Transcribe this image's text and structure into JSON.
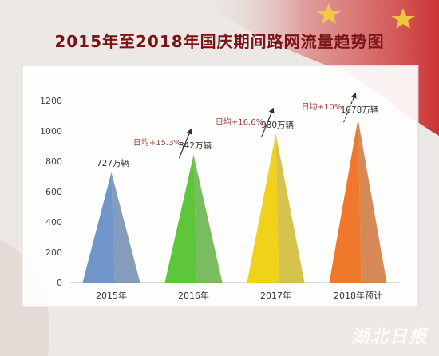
{
  "title": "2015年至2018年国庆期间路网流量趋势图",
  "watermark": "湖北日报",
  "colors": {
    "bars": [
      "#6f95c9",
      "#5ec63a",
      "#f0d21b",
      "#f0782a"
    ],
    "arrow": "#333333"
  },
  "chart_data": {
    "type": "bar",
    "categories": [
      "2015年",
      "2016年",
      "2017年",
      "2018年预计"
    ],
    "values": [
      727,
      842,
      980,
      1078
    ],
    "value_labels": [
      "727万辆",
      "842万辆",
      "980万辆",
      "1078万辆"
    ],
    "growth_labels": [
      "日均+15.3%",
      "日均+16.6%",
      "日均+10%"
    ],
    "yticks": [
      0,
      200,
      400,
      600,
      800,
      1000,
      1200
    ],
    "ylim": [
      0,
      1200
    ],
    "title": "2015年至2018年国庆期间路网流量趋势图",
    "xlabel": "",
    "ylabel": "",
    "grid": false,
    "bar_shape": "cone"
  }
}
